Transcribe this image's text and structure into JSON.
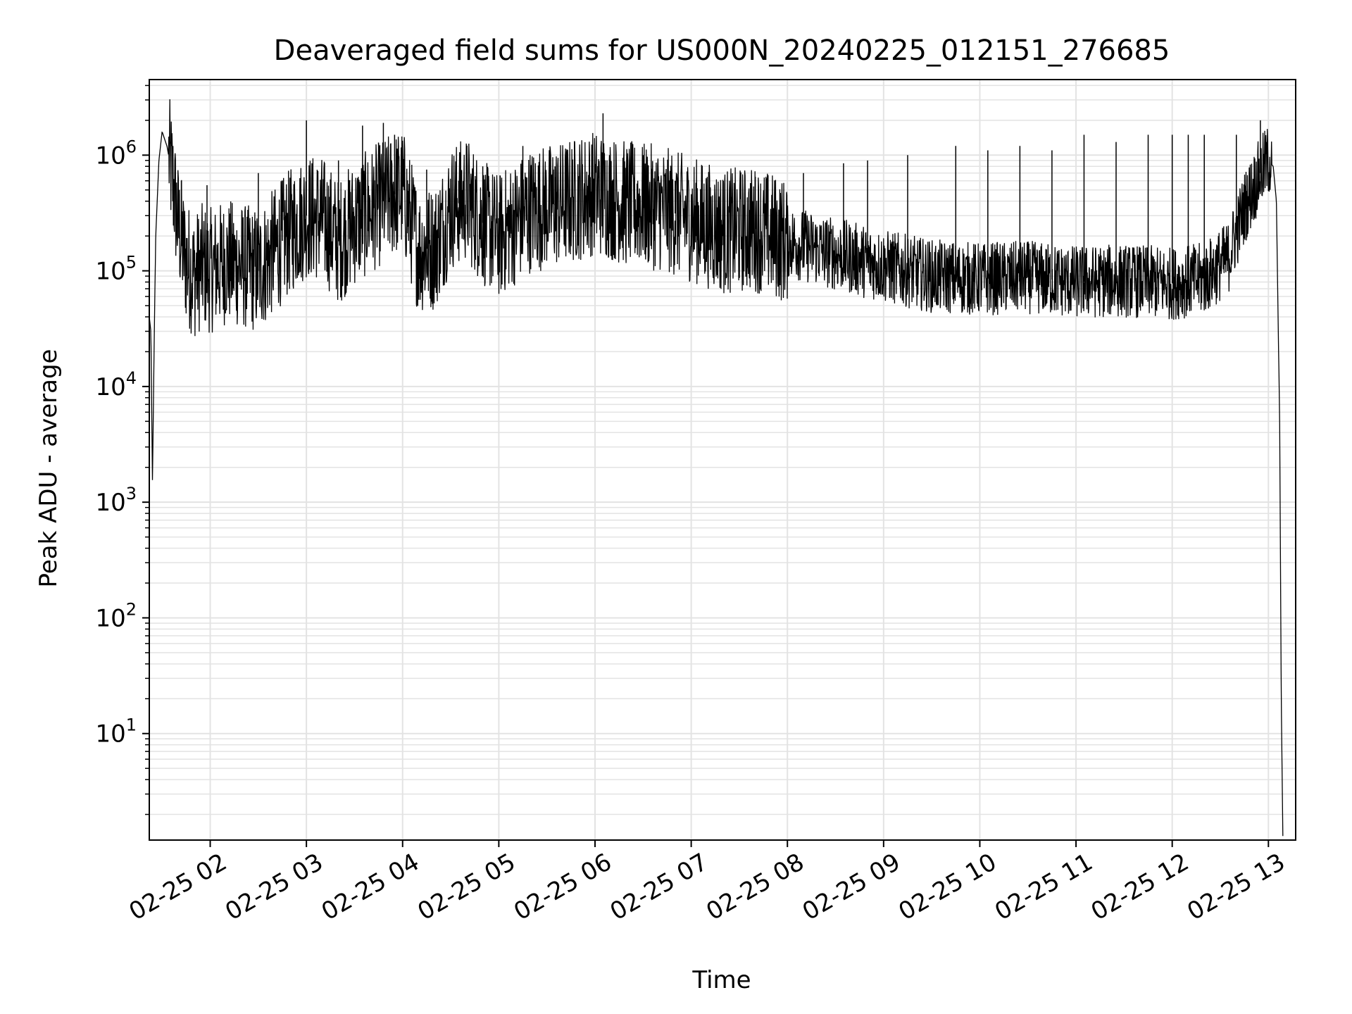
{
  "chart_data": {
    "type": "line",
    "title": "Deaveraged field sums for US000N_20240225_012151_276685",
    "xlabel": "Time",
    "ylabel": "Peak ADU - average",
    "yscale": "log",
    "ylim": [
      1.2,
      4500000
    ],
    "xlim": [
      "02-25 01:22",
      "02-25 13:17"
    ],
    "grid": true,
    "line_color": "#000000",
    "grid_color": "#e3e3e3",
    "x_ticks": [
      {
        "t": "02-25 02:00",
        "label": "02-25 02"
      },
      {
        "t": "02-25 03:00",
        "label": "02-25 03"
      },
      {
        "t": "02-25 04:00",
        "label": "02-25 04"
      },
      {
        "t": "02-25 05:00",
        "label": "02-25 05"
      },
      {
        "t": "02-25 06:00",
        "label": "02-25 06"
      },
      {
        "t": "02-25 07:00",
        "label": "02-25 07"
      },
      {
        "t": "02-25 08:00",
        "label": "02-25 08"
      },
      {
        "t": "02-25 09:00",
        "label": "02-25 09"
      },
      {
        "t": "02-25 10:00",
        "label": "02-25 10"
      },
      {
        "t": "02-25 11:00",
        "label": "02-25 11"
      },
      {
        "t": "02-25 12:00",
        "label": "02-25 12"
      },
      {
        "t": "02-25 13:00",
        "label": "02-25 13"
      }
    ],
    "y_ticks": [
      {
        "value": 10,
        "base": "10",
        "exp": "1"
      },
      {
        "value": 100,
        "base": "10",
        "exp": "2"
      },
      {
        "value": 1000,
        "base": "10",
        "exp": "3"
      },
      {
        "value": 10000,
        "base": "10",
        "exp": "4"
      },
      {
        "value": 100000,
        "base": "10",
        "exp": "5"
      },
      {
        "value": 1000000,
        "base": "10",
        "exp": "6"
      }
    ],
    "series": [
      {
        "x": [
          "02-25 01:22",
          "02-25 01:23",
          "02-25 01:24",
          "02-25 01:25",
          "02-25 01:26",
          "02-25 01:28",
          "02-25 01:30",
          "02-25 01:33",
          "02-25 01:36",
          "02-25 01:40",
          "02-25 01:45",
          "02-25 01:50",
          "02-25 01:55",
          "02-25 02:00",
          "02-25 02:10",
          "02-25 02:20",
          "02-25 02:30",
          "02-25 02:40",
          "02-25 02:50",
          "02-25 03:00",
          "02-25 03:10",
          "02-25 03:20",
          "02-25 03:30",
          "02-25 03:40",
          "02-25 03:50",
          "02-25 04:00",
          "02-25 04:10",
          "02-25 04:20",
          "02-25 04:30",
          "02-25 04:40",
          "02-25 04:50",
          "02-25 05:00",
          "02-25 05:20",
          "02-25 05:40",
          "02-25 06:00",
          "02-25 06:20",
          "02-25 06:40",
          "02-25 07:00",
          "02-25 07:20",
          "02-25 07:40",
          "02-25 08:00",
          "02-25 08:30",
          "02-25 09:00",
          "02-25 09:30",
          "02-25 10:00",
          "02-25 10:30",
          "02-25 11:00",
          "02-25 11:30",
          "02-25 12:00",
          "02-25 12:20",
          "02-25 12:35",
          "02-25 12:45",
          "02-25 12:55",
          "02-25 13:00",
          "02-25 13:03",
          "02-25 13:05",
          "02-25 13:07",
          "02-25 13:08",
          "02-25 13:09"
        ],
        "y": [
          40000,
          30000,
          1500,
          20000,
          200000,
          900000,
          1600000,
          1200000,
          700000,
          250000,
          120000,
          90000,
          110000,
          100000,
          120000,
          110000,
          100000,
          150000,
          220000,
          300000,
          280000,
          180000,
          260000,
          330000,
          420000,
          500000,
          150000,
          160000,
          350000,
          420000,
          260000,
          200000,
          340000,
          380000,
          480000,
          380000,
          350000,
          280000,
          220000,
          230000,
          180000,
          140000,
          110000,
          90000,
          85000,
          88000,
          80000,
          82000,
          78000,
          85000,
          130000,
          350000,
          700000,
          900000,
          800000,
          400000,
          5000,
          20,
          1.3
        ]
      }
    ],
    "spikes": {
      "x": [
        "02-25 01:42",
        "02-25 01:58",
        "02-25 02:30",
        "02-25 02:45",
        "02-25 03:00",
        "02-25 03:20",
        "02-25 03:35",
        "02-25 03:48",
        "02-25 03:55",
        "02-25 04:15",
        "02-25 04:35",
        "02-25 04:50",
        "02-25 05:15",
        "02-25 05:35",
        "02-25 06:05",
        "02-25 06:30",
        "02-25 06:50",
        "02-25 07:20",
        "02-25 07:40",
        "02-25 08:10",
        "02-25 08:35",
        "02-25 08:50",
        "02-25 09:15",
        "02-25 09:45",
        "02-25 10:05",
        "02-25 10:25",
        "02-25 10:45",
        "02-25 11:05",
        "02-25 11:25",
        "02-25 11:45",
        "02-25 12:00",
        "02-25 12:10",
        "02-25 12:20",
        "02-25 12:40",
        "02-25 12:55"
      ],
      "y": [
        600000,
        550000,
        700000,
        600000,
        2000000,
        900000,
        1800000,
        1900000,
        1500000,
        750000,
        600000,
        800000,
        1200000,
        800000,
        2300000,
        1000000,
        600000,
        600000,
        650000,
        700000,
        850000,
        900000,
        1000000,
        1200000,
        1100000,
        1200000,
        1100000,
        1500000,
        1300000,
        1500000,
        1500000,
        1500000,
        1500000,
        1500000,
        2000000
      ]
    }
  }
}
